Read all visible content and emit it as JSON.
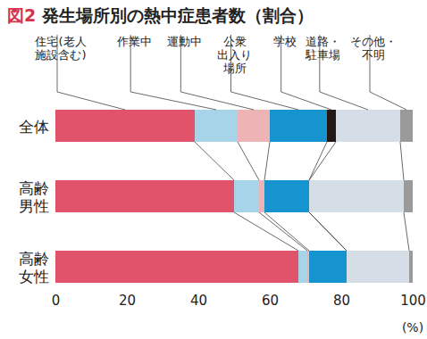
{
  "chart_data": {
    "type": "bar",
    "orientation": "horizontal",
    "stacked": true,
    "title": "図2 発生場所別の熱中症患者数（割合）",
    "x_label": "(%)",
    "categories": [
      "全体",
      "高齢\n男性",
      "高齢\n女性"
    ],
    "series": [
      {
        "name": "住宅(老人\n施設含む)",
        "color": "#e0536b",
        "values": [
          39,
          50,
          68
        ]
      },
      {
        "name": "作業中",
        "color": "#a8d4ea",
        "values": [
          12,
          7,
          2.5
        ]
      },
      {
        "name": "運動中",
        "color": "#eeb3b5",
        "values": [
          9,
          1.5,
          0.5
        ]
      },
      {
        "name": "公衆\n出入り\n場所",
        "color": "#1594d0",
        "values": [
          16,
          12.5,
          10.5
        ]
      },
      {
        "name": "学校",
        "color": "#231815",
        "values": [
          2.5,
          0,
          0
        ]
      },
      {
        "name": "道路・\n駐車場",
        "color": "#d5dee6",
        "values": [
          18,
          26.5,
          17.5
        ]
      },
      {
        "name": "その他・\n不明",
        "color": "#9a9a9a",
        "values": [
          3.5,
          2.5,
          1
        ]
      }
    ],
    "xlim": [
      0,
      100
    ],
    "xticks": [
      0,
      20,
      40,
      60,
      80,
      100
    ],
    "grid": false,
    "legend": "top"
  }
}
